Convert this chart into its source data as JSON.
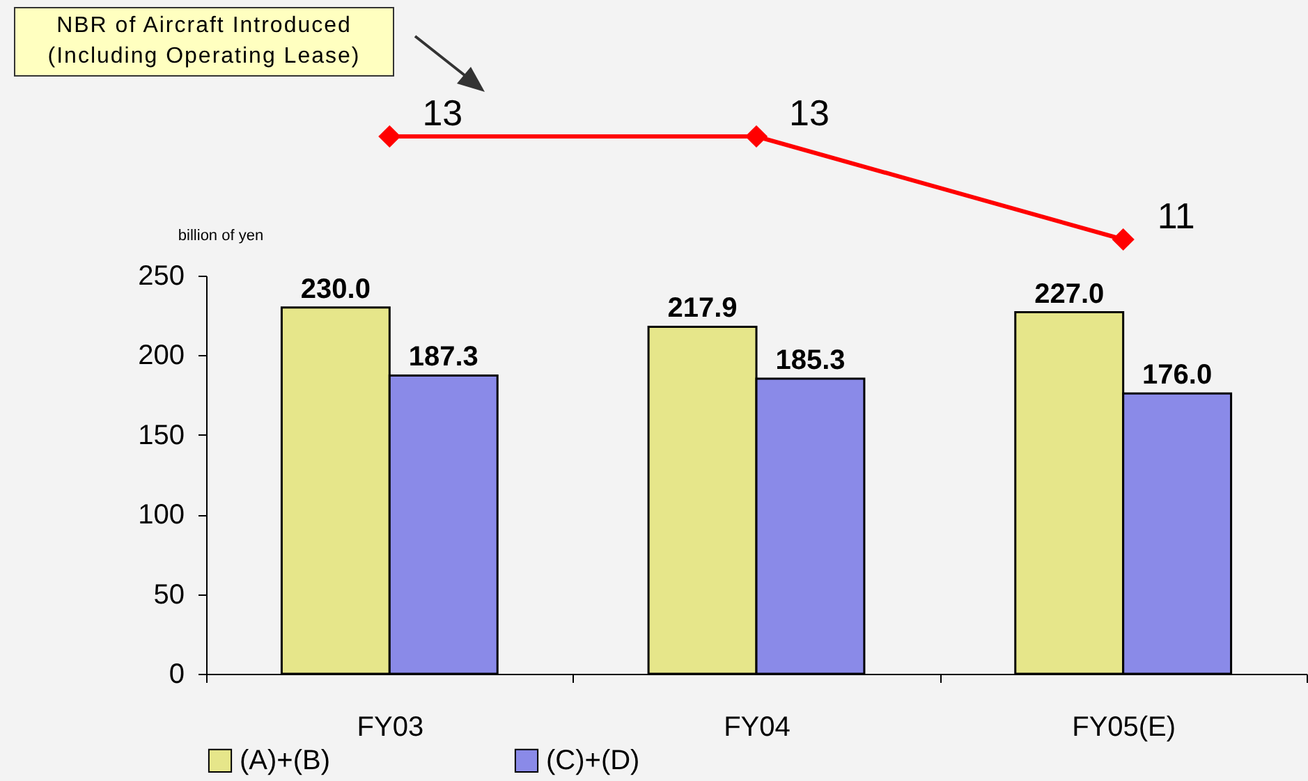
{
  "chart_data": [
    {
      "type": "line",
      "categories": [
        null,
        null,
        null
      ],
      "marker": "diamond",
      "data_labels": true,
      "series": [
        {
          "name": "NBR of Aircraft Introduced (Including Operating Lease)",
          "color": "#ff0000",
          "values": [
            13,
            13,
            11
          ]
        }
      ]
    },
    {
      "type": "bar",
      "categories": [
        "FY03",
        "FY04",
        "FY05(E)"
      ],
      "ylabel": "billion of yen",
      "ylim": [
        0,
        250
      ],
      "yticks": [
        0,
        50,
        100,
        150,
        200,
        250
      ],
      "legend": "bottom",
      "series": [
        {
          "name": "(A)+(B)",
          "color": "#e6e68a",
          "values": [
            230.0,
            217.9,
            227.0
          ],
          "value_labels": [
            "230.0",
            "217.9",
            "227.0"
          ]
        },
        {
          "name": "(C)+(D)",
          "color": "#8a8ae8",
          "values": [
            187.3,
            185.3,
            176.0
          ],
          "value_labels": [
            "187.3",
            "185.3",
            "176.0"
          ]
        }
      ]
    }
  ]
}
